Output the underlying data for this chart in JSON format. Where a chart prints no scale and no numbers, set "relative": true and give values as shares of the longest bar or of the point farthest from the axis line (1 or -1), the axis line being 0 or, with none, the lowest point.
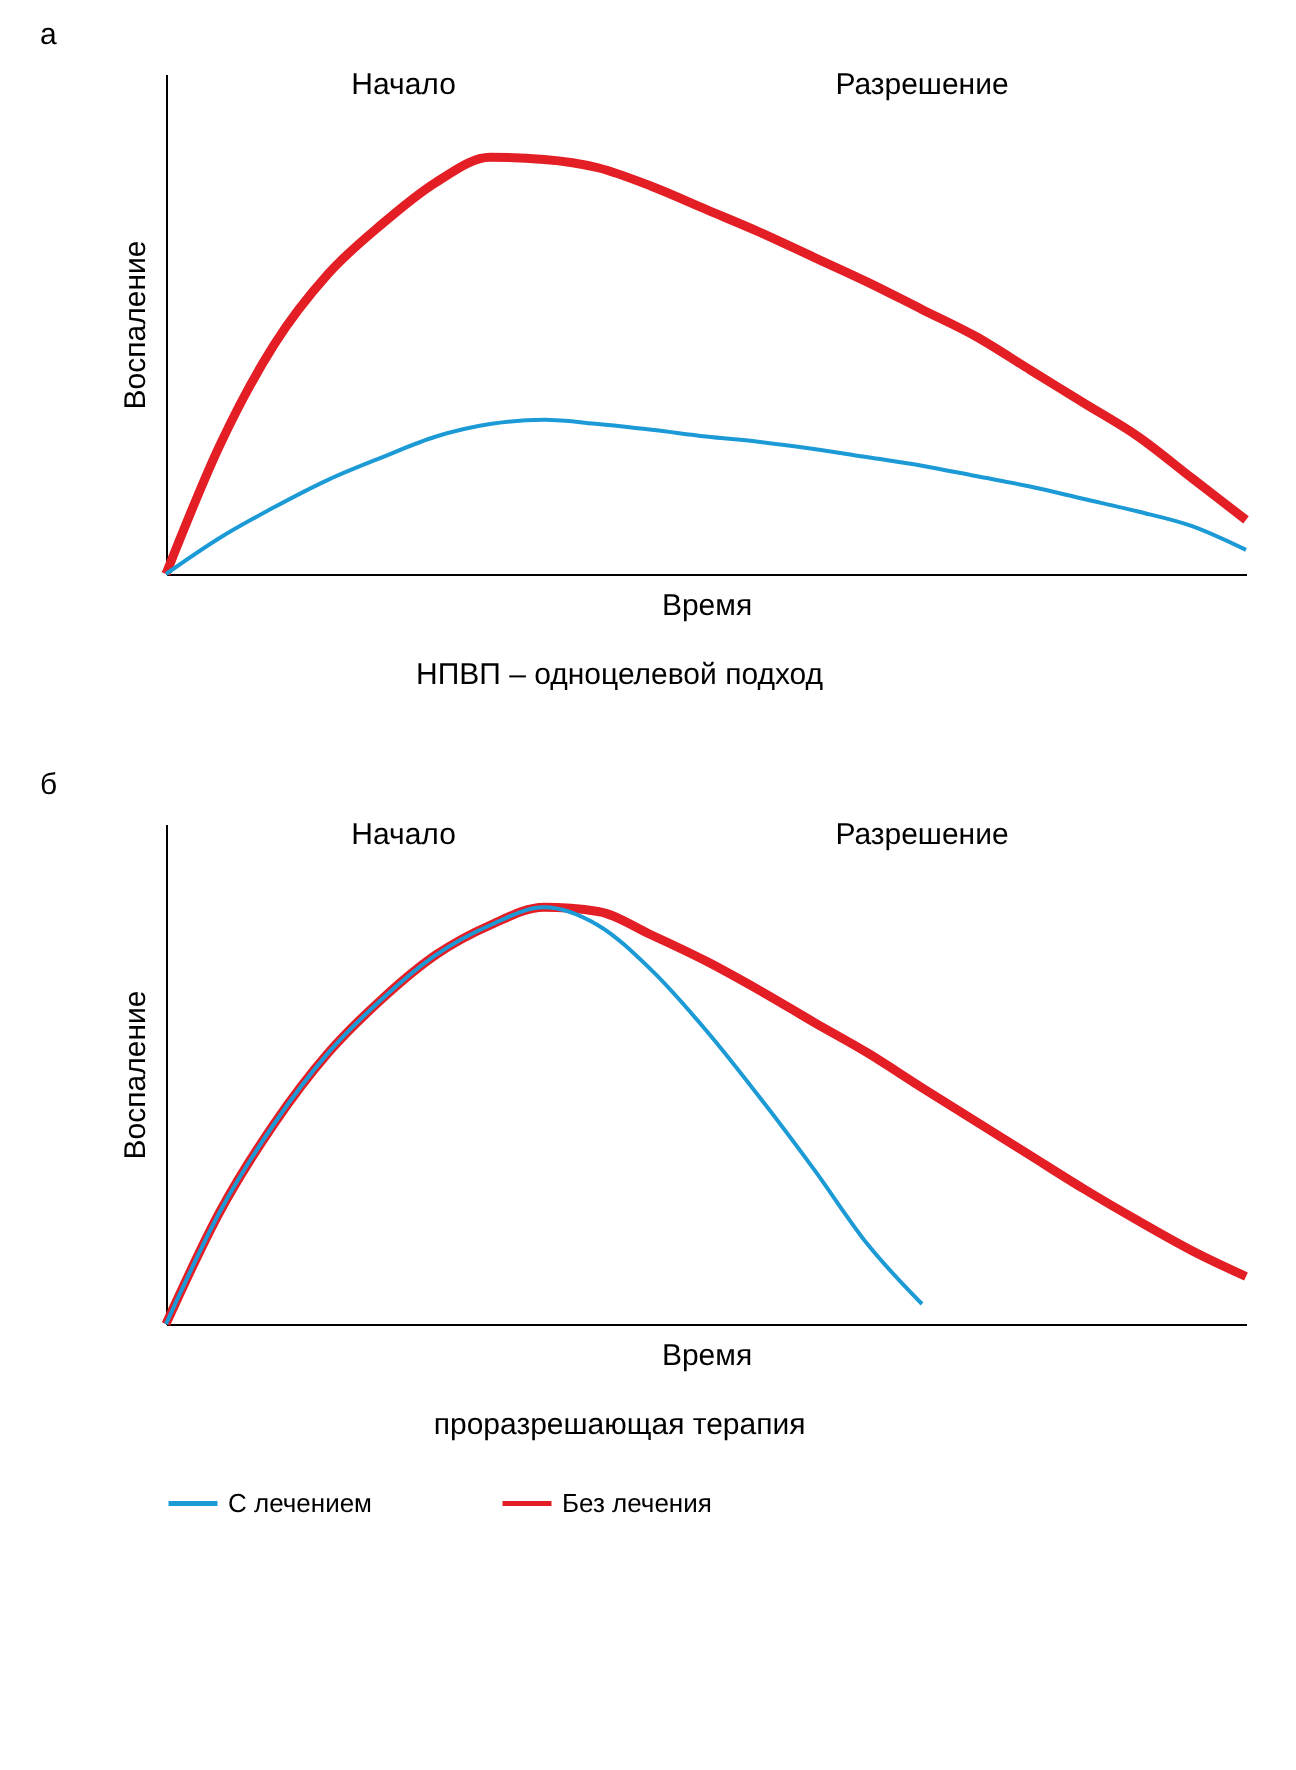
{
  "chart_data": [
    {
      "type": "line",
      "title": "а",
      "xlabel": "Время",
      "ylabel": "Воспаление",
      "relative": true,
      "legend": "bottom",
      "annotations": [
        "Начало",
        "Разрешение",
        "НПВП – одноцелевой подход"
      ],
      "categories": [
        null,
        null,
        null,
        null,
        null,
        null,
        null,
        null,
        null,
        null,
        null,
        null,
        null,
        null,
        null,
        null,
        null,
        null,
        null,
        null,
        null
      ],
      "series": [
        {
          "name": "С лечением",
          "color": "#1b9ad6",
          "values": [
            0,
            0.087,
            0.16,
            0.226,
            0.28,
            0.33,
            0.36,
            0.37,
            0.36,
            0.346,
            0.33,
            0.317,
            0.3,
            0.28,
            0.26,
            0.235,
            0.21,
            0.18,
            0.15,
            0.115,
            0.058
          ]
        },
        {
          "name": "Без лечения",
          "color": "#e31e24",
          "values": [
            0,
            0.31,
            0.55,
            0.72,
            0.84,
            0.94,
            1,
            0.995,
            0.975,
            0.93,
            0.875,
            0.82,
            0.76,
            0.7,
            0.635,
            0.57,
            0.49,
            0.41,
            0.33,
            0.23,
            0.13
          ]
        }
      ]
    },
    {
      "type": "line",
      "title": "б",
      "xlabel": "Время",
      "ylabel": "Воспаление",
      "relative": true,
      "legend": "bottom",
      "annotations": [
        "Начало",
        "Разрешение",
        "проразрешающая терапия"
      ],
      "categories": [
        null,
        null,
        null,
        null,
        null,
        null,
        null,
        null,
        null,
        null,
        null,
        null,
        null,
        null,
        null,
        null,
        null,
        null,
        null,
        null,
        null
      ],
      "series": [
        {
          "name": "С лечением",
          "color": "#1b9ad6",
          "values": [
            0,
            0.27,
            0.48,
            0.65,
            0.78,
            0.886,
            0.957,
            1,
            0.957,
            0.848,
            0.705,
            0.543,
            0.371,
            0.19,
            0.048,
            null,
            null,
            null,
            null,
            null,
            null
          ]
        },
        {
          "name": "Без лечения",
          "color": "#e31e24",
          "values": [
            0,
            0.27,
            0.48,
            0.65,
            0.78,
            0.886,
            0.957,
            1,
            0.99,
            0.933,
            0.871,
            0.8,
            0.724,
            0.65,
            0.567,
            0.486,
            0.405,
            0.324,
            0.248,
            0.176,
            0.114
          ]
        }
      ]
    }
  ]
}
